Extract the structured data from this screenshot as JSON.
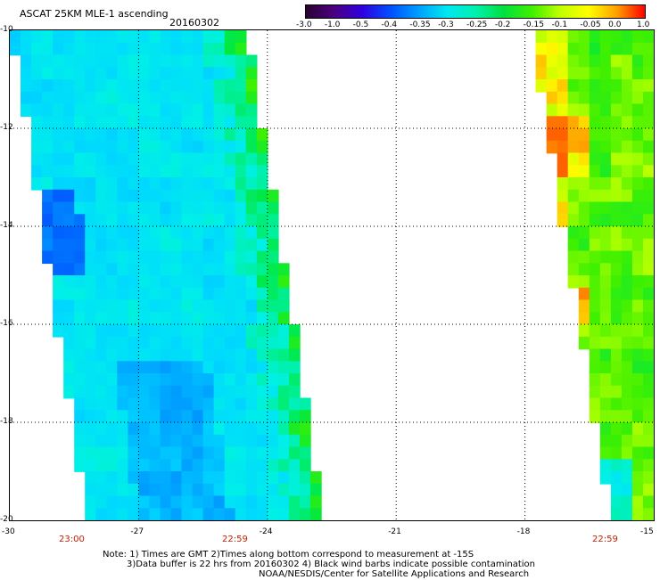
{
  "header": {
    "title": "ASCAT 25KM MLE-1 ascending",
    "date": "20160302"
  },
  "colorbar": {
    "labels": [
      "-3.0",
      "-1.0",
      "-0.5",
      "-0.4",
      "-0.35",
      "-0.3",
      "-0.25",
      "-0.2",
      "-0.15",
      "-0.1",
      "-0.05",
      "0.0",
      "1.0"
    ],
    "colors": [
      "#2b0030",
      "#4a0080",
      "#3000e0",
      "#0050ff",
      "#00a0ff",
      "#00e8f0",
      "#00f0b0",
      "#00e040",
      "#40f000",
      "#c0ff00",
      "#ffff00",
      "#ffa000",
      "#ff0000"
    ]
  },
  "axes": {
    "lat_labels": [
      "-10",
      "-12",
      "-14",
      "-16",
      "-18",
      "-20"
    ],
    "lon_labels": [
      "-30",
      "-27",
      "-24",
      "-21",
      "-18",
      "-15"
    ]
  },
  "times": {
    "left": "23:00",
    "mid": "22:59",
    "right": "22:59"
  },
  "notes": {
    "line1": "Note: 1) Times are GMT 2)Times along bottom correspond to measurement at -15S",
    "line2": "3)Data buffer is 22 hrs from 20160302 4) Black wind barbs indicate possible contamination",
    "line3": "NOAA/NESDIS/Center for Satellite Applications and Research"
  },
  "map_data": {
    "type": "swath-field",
    "extent": {
      "lon": [
        -30,
        -15
      ],
      "lat": [
        -20,
        -10
      ]
    },
    "grid_step_deg": 0.25,
    "swaths": [
      {
        "name": "west",
        "west_edge": [
          [
            -10,
            -29.95
          ],
          [
            -20,
            -28.2
          ]
        ],
        "east_edge": [
          [
            -10,
            -24.6
          ],
          [
            -20,
            -22.8
          ]
        ],
        "dominant_value": -0.28
      },
      {
        "name": "east",
        "west_edge": [
          [
            -10,
            -17.85
          ],
          [
            -20,
            -16.0
          ]
        ],
        "east_edge": [
          [
            -10,
            -15.0
          ],
          [
            -20,
            -15.0
          ]
        ],
        "dominant_value": -0.13
      }
    ]
  }
}
